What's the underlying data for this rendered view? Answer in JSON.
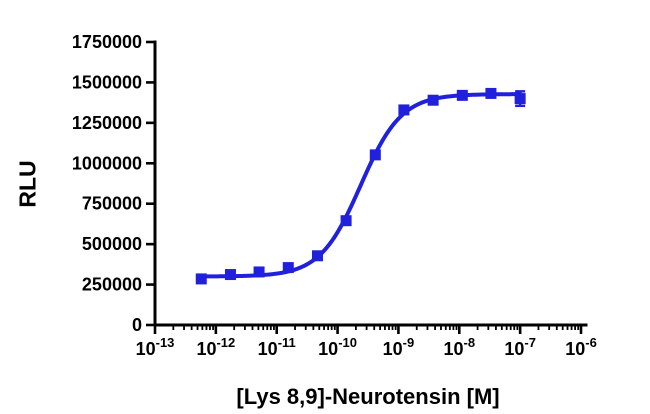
{
  "background": "#ffffff",
  "axis_color": "#000000",
  "chart_data": {
    "type": "scatter",
    "title": "",
    "xlabel": "[Lys 8,9]-Neurotensin [M]",
    "ylabel": "RLU",
    "x_scale": "log10",
    "x_decades": [
      -13,
      -6
    ],
    "x_tick_exponents": [
      -13,
      -12,
      -11,
      -10,
      -9,
      -8,
      -7,
      -6
    ],
    "ylim": [
      0,
      1750000
    ],
    "y_ticks": [
      0,
      250000,
      500000,
      750000,
      1000000,
      1250000,
      1500000,
      1750000
    ],
    "grid": false,
    "legend": "none",
    "series": [
      {
        "name": "[Lys 8,9]-Neurotensin",
        "color": "#2020dd",
        "marker": "square",
        "points": [
          {
            "log_x": -12.24,
            "y": 285000,
            "err": 15000
          },
          {
            "log_x": -11.76,
            "y": 312000,
            "err": 10000
          },
          {
            "log_x": -11.29,
            "y": 328000,
            "err": 10000
          },
          {
            "log_x": -10.81,
            "y": 355000,
            "err": 10000
          },
          {
            "log_x": -10.33,
            "y": 428000,
            "err": 12000
          },
          {
            "log_x": -9.86,
            "y": 645000,
            "err": 15000
          },
          {
            "log_x": -9.38,
            "y": 1052000,
            "err": 22000
          },
          {
            "log_x": -8.91,
            "y": 1330000,
            "err": 18000
          },
          {
            "log_x": -8.43,
            "y": 1390000,
            "err": 15000
          },
          {
            "log_x": -7.95,
            "y": 1420000,
            "err": 12000
          },
          {
            "log_x": -7.48,
            "y": 1432000,
            "err": 12000
          },
          {
            "log_x": -7.0,
            "y": 1400000,
            "err": 45000
          }
        ],
        "fit": {
          "model": "4PL",
          "bottom": 300000,
          "top": 1428000,
          "log_ec50": -9.62,
          "hill": 1.3
        }
      }
    ]
  }
}
